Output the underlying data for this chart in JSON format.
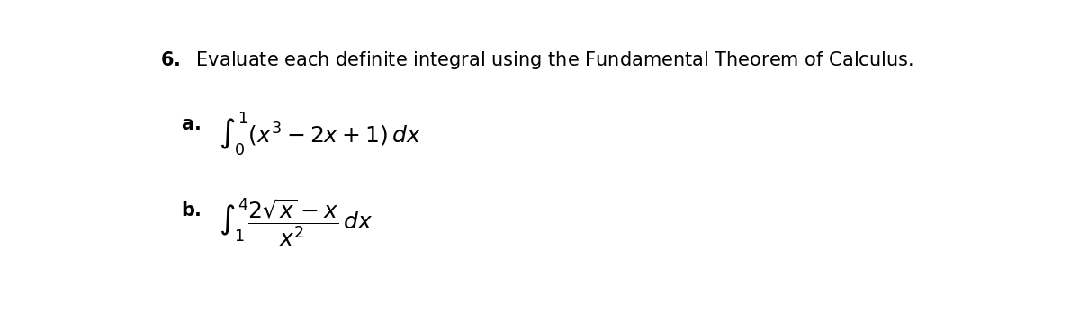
{
  "background_color": "#ffffff",
  "title_fontsize": 15,
  "label_fontsize": 15,
  "expr_fontsize": 18
}
